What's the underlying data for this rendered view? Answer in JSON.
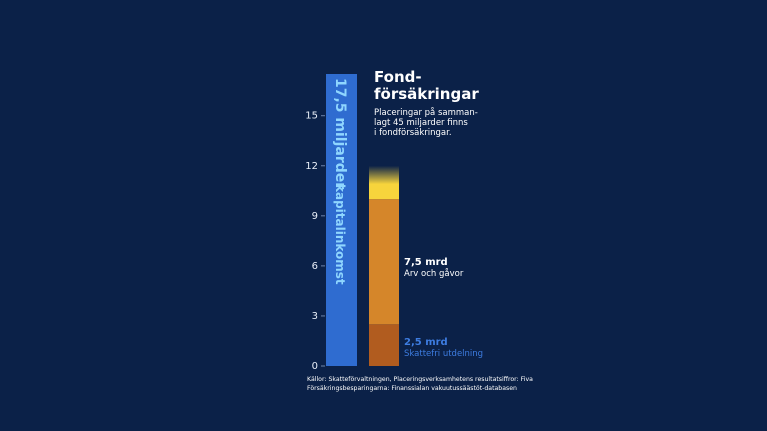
{
  "chart_data": {
    "type": "stacked_bar",
    "title_lines": [
      "Fond-",
      "försäkringar"
    ],
    "subtitle_lines": [
      "Placeringar på samman-",
      "lagt 45 miljarder finns",
      "i fondförsäkringar."
    ],
    "source_lines": [
      "Källor: Skatteförvaltningen, Placeringsverksamhetens resultatsiffror: Fiva",
      "Försäkringsbesparingarna: Finanssialan vakuutussäästöt-databasen"
    ],
    "ylim": [
      0,
      17.5
    ],
    "yticks": [
      0,
      3,
      6,
      9,
      12,
      15
    ],
    "bars": [
      {
        "segments": [
          {
            "name": "kapitalinkomst",
            "value": 17.5,
            "value_label": "17,5 miljarder",
            "color": "#2f6cd0"
          }
        ]
      },
      {
        "segments": [
          {
            "name": "Skattefri utdelning",
            "value": 2.5,
            "value_label": "2,5 mrd",
            "color": "#b15c1f"
          },
          {
            "name": "Arv och gåvor",
            "value": 7.5,
            "value_label": "7,5 mrd",
            "color": "#d5862a"
          },
          {
            "value": 2,
            "color": "#f7d43c"
          }
        ]
      }
    ]
  }
}
